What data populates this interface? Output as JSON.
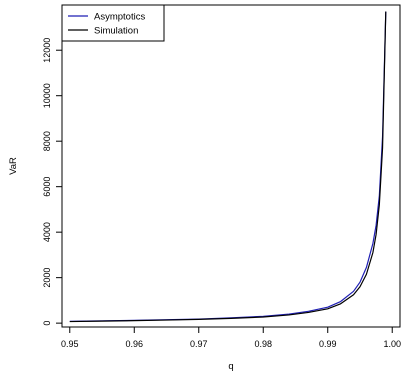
{
  "chart_data": {
    "type": "line",
    "title": "",
    "xlabel": "q",
    "ylabel": "VaR",
    "xlim": [
      0.95,
      1.0
    ],
    "ylim": [
      0,
      13900
    ],
    "x_ticks": [
      0.95,
      0.96,
      0.97,
      0.98,
      0.99,
      1.0
    ],
    "x_tick_labels": [
      "0.95",
      "0.96",
      "0.97",
      "0.98",
      "0.99",
      "1.00"
    ],
    "y_ticks": [
      0,
      2000,
      4000,
      6000,
      8000,
      10000,
      12000
    ],
    "y_tick_labels": [
      "0",
      "2000",
      "4000",
      "6000",
      "8000",
      "10000",
      "12000"
    ],
    "grid": false,
    "legend_position": "top-left",
    "series": [
      {
        "name": "Asymptotics",
        "color": "#1f1fb4",
        "x": [
          0.95,
          0.955,
          0.96,
          0.965,
          0.97,
          0.975,
          0.98,
          0.984,
          0.987,
          0.99,
          0.992,
          0.994,
          0.995,
          0.996,
          0.997,
          0.9975,
          0.998,
          0.9985,
          0.999
        ],
        "y": [
          80,
          100,
          120,
          150,
          180,
          230,
          300,
          400,
          520,
          700,
          950,
          1400,
          1800,
          2450,
          3500,
          4300,
          5600,
          8200,
          13700
        ]
      },
      {
        "name": "Simulation",
        "color": "#000000",
        "x": [
          0.95,
          0.955,
          0.96,
          0.965,
          0.97,
          0.975,
          0.98,
          0.984,
          0.987,
          0.99,
          0.992,
          0.994,
          0.995,
          0.996,
          0.997,
          0.9975,
          0.998,
          0.9985,
          0.999
        ],
        "y": [
          70,
          90,
          110,
          135,
          165,
          210,
          270,
          360,
          470,
          630,
          850,
          1250,
          1600,
          2150,
          3100,
          3900,
          5200,
          7700,
          13700
        ]
      }
    ]
  }
}
